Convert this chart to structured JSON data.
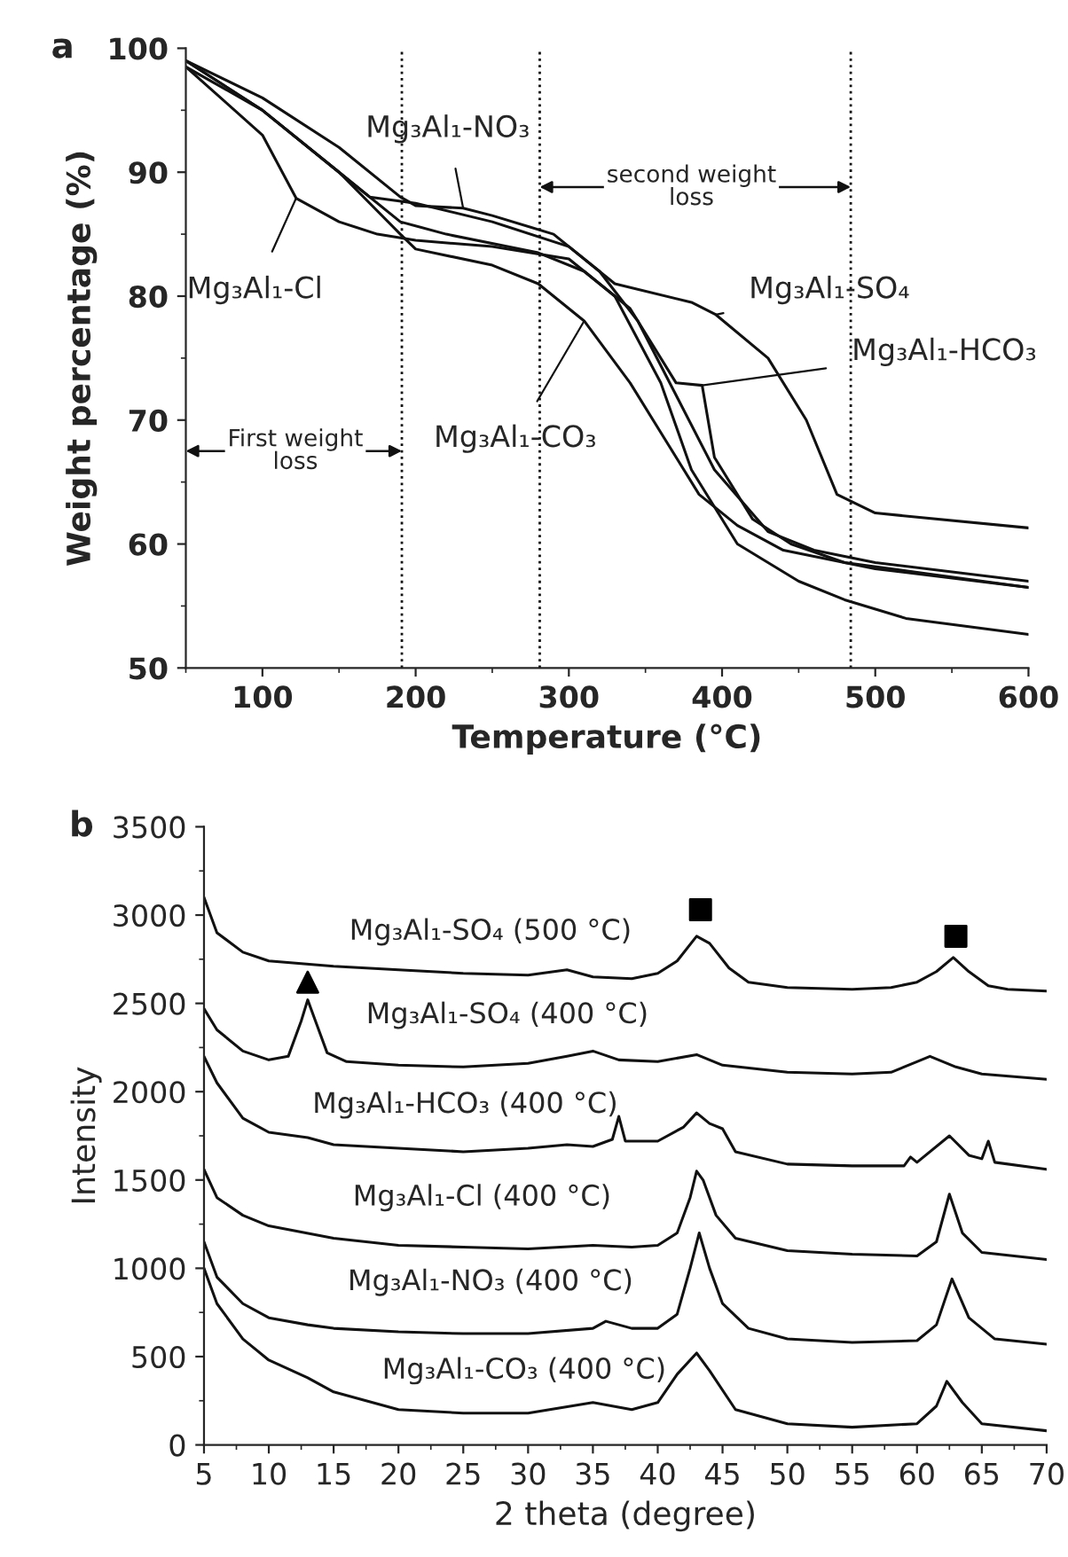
{
  "chart_data": [
    {
      "type": "line",
      "title": "a",
      "xlabel": "Temperature (°C)",
      "ylabel": "Weight percentage (%)",
      "xlim": [
        50,
        600
      ],
      "ylim": [
        50,
        100
      ],
      "xticks": [
        100,
        200,
        300,
        400,
        500,
        600
      ],
      "yticks": [
        50,
        60,
        70,
        80,
        90,
        100
      ],
      "grid": false,
      "legend": false,
      "series": [
        {
          "color": "#111111",
          "x": [
            50,
            100,
            150,
            190,
            200,
            250,
            280,
            310,
            340,
            365,
            385,
            410,
            440,
            500,
            600
          ],
          "values": [
            98.5,
            95,
            90,
            85,
            83.8,
            82.5,
            81,
            78,
            73,
            68,
            64,
            61.5,
            59.5,
            58,
            56.5
          ]
        },
        {
          "color": "#111111",
          "x": [
            50,
            100,
            122,
            150,
            175,
            200,
            250,
            300,
            330,
            360,
            380,
            410,
            450,
            480,
            520,
            600
          ],
          "values": [
            98.5,
            93,
            87.9,
            86,
            85,
            84.5,
            84,
            83,
            80,
            73,
            66,
            60,
            57,
            55.5,
            54,
            52.7
          ]
        },
        {
          "color": "#111111",
          "x": [
            50,
            100,
            150,
            190,
            200,
            231,
            250,
            290,
            320,
            345,
            370,
            395,
            430,
            460,
            500,
            600
          ],
          "values": [
            99,
            96,
            92,
            88,
            87.3,
            87.1,
            86.5,
            85,
            82,
            78,
            72,
            66,
            61,
            59.5,
            58.5,
            57
          ]
        },
        {
          "color": "#111111",
          "x": [
            50,
            100,
            150,
            190,
            220,
            280,
            310,
            340,
            370,
            387,
            395,
            420,
            445,
            480,
            540,
            600
          ],
          "values": [
            99,
            95,
            90,
            86,
            85,
            83.5,
            82,
            79,
            73,
            72.8,
            67,
            62,
            60,
            58.5,
            57.5,
            56.5
          ]
        },
        {
          "color": "#111111",
          "x": [
            50,
            100,
            150,
            170,
            200,
            250,
            300,
            330,
            380,
            396,
            430,
            455,
            475,
            500,
            600
          ],
          "values": [
            99,
            95,
            90,
            88,
            87.5,
            86,
            84,
            81,
            79.5,
            78.5,
            75,
            70,
            64,
            62.5,
            61.3
          ]
        }
      ],
      "ref_lines": [
        {
          "axis": "x",
          "value": 191,
          "line_style": "dotted",
          "color": "#111111"
        },
        {
          "axis": "x",
          "value": 281,
          "line_style": "dotted",
          "color": "#111111"
        },
        {
          "axis": "x",
          "value": 484,
          "line_style": "dotted",
          "color": "#111111"
        }
      ],
      "annotations": [
        {
          "text": "Mg₃Al₁-NO₃",
          "x": 231,
          "y": 87.1
        },
        {
          "text": "Mg₃Al₁-Cl",
          "x": 122,
          "y": 87.9
        },
        {
          "text": "Mg₃Al₁-SO₄",
          "x": 396,
          "y": 78.5
        },
        {
          "text": "Mg₃Al₁-HCO₃",
          "x": 387,
          "y": 72.8
        },
        {
          "text": "Mg₃Al₁-CO₃",
          "x": 310,
          "y": 78
        },
        "First weight\nloss",
        "second weight\nloss"
      ]
    },
    {
      "type": "line",
      "title": "b",
      "xlabel": "2 theta (degree)",
      "ylabel": "Intensity",
      "xlim": [
        5,
        70
      ],
      "ylim": [
        0,
        3500
      ],
      "xticks": [
        5,
        10,
        15,
        20,
        25,
        30,
        35,
        40,
        45,
        50,
        55,
        60,
        65,
        70
      ],
      "yticks": [
        0,
        500,
        1000,
        1500,
        2000,
        2500,
        3000,
        3500
      ],
      "grid": false,
      "legend": false,
      "series": [
        {
          "color": "#111111",
          "x": [
            5,
            6,
            8,
            10,
            15,
            20,
            25,
            30,
            33,
            35,
            38,
            40,
            41.5,
            43,
            44,
            45.5,
            47,
            50,
            55,
            58,
            60,
            61.5,
            62.8,
            64,
            65.5,
            67,
            70
          ],
          "values": [
            3100,
            2900,
            2790,
            2740,
            2710,
            2690,
            2670,
            2660,
            2690,
            2650,
            2640,
            2670,
            2740,
            2880,
            2840,
            2700,
            2620,
            2590,
            2580,
            2590,
            2620,
            2680,
            2760,
            2680,
            2600,
            2580,
            2570
          ]
        },
        {
          "color": "#111111",
          "x": [
            5,
            6,
            8,
            10,
            11.5,
            12.5,
            13,
            13.7,
            14.5,
            16,
            20,
            25,
            30,
            33,
            35,
            37,
            40,
            43,
            45,
            50,
            55,
            58,
            60,
            61,
            63,
            65,
            70
          ],
          "values": [
            2470,
            2350,
            2230,
            2180,
            2200,
            2400,
            2520,
            2380,
            2220,
            2170,
            2150,
            2140,
            2160,
            2200,
            2230,
            2180,
            2170,
            2210,
            2150,
            2110,
            2100,
            2110,
            2170,
            2200,
            2140,
            2100,
            2070
          ]
        },
        {
          "color": "#111111",
          "x": [
            5,
            6,
            8,
            10,
            13,
            15,
            20,
            25,
            30,
            33,
            35,
            36.5,
            37,
            37.5,
            40,
            42,
            43,
            44,
            45,
            46,
            50,
            55,
            59,
            59.5,
            60,
            62.5,
            64,
            65,
            65.5,
            66,
            70
          ],
          "values": [
            2200,
            2050,
            1850,
            1770,
            1740,
            1700,
            1680,
            1660,
            1680,
            1700,
            1690,
            1730,
            1860,
            1720,
            1720,
            1800,
            1880,
            1820,
            1790,
            1660,
            1590,
            1580,
            1580,
            1630,
            1600,
            1750,
            1640,
            1620,
            1720,
            1600,
            1560
          ]
        },
        {
          "color": "#111111",
          "x": [
            5,
            6,
            8,
            10,
            15,
            20,
            25,
            30,
            35,
            38,
            40,
            41.5,
            42.5,
            43,
            43.5,
            44.5,
            46,
            50,
            55,
            60,
            61.5,
            62.5,
            63.5,
            65,
            70
          ],
          "values": [
            1560,
            1400,
            1300,
            1240,
            1170,
            1130,
            1120,
            1110,
            1130,
            1120,
            1130,
            1200,
            1400,
            1550,
            1500,
            1300,
            1170,
            1100,
            1080,
            1070,
            1150,
            1420,
            1200,
            1090,
            1050
          ]
        },
        {
          "color": "#111111",
          "x": [
            5,
            6,
            8,
            10,
            13,
            15,
            20,
            25,
            30,
            35,
            36,
            38,
            40,
            41.5,
            42.5,
            43.2,
            44,
            45,
            47,
            50,
            55,
            60,
            61.5,
            62.7,
            64,
            66,
            70
          ],
          "values": [
            1150,
            950,
            800,
            720,
            680,
            660,
            640,
            630,
            630,
            660,
            700,
            660,
            660,
            740,
            1000,
            1200,
            1000,
            800,
            660,
            600,
            580,
            590,
            680,
            940,
            720,
            600,
            570
          ]
        },
        {
          "color": "#111111",
          "x": [
            5,
            6,
            8,
            10,
            13,
            15,
            20,
            25,
            30,
            35,
            38,
            40,
            41.5,
            43,
            44,
            46,
            50,
            55,
            60,
            61.5,
            62.3,
            63.5,
            65,
            70
          ],
          "values": [
            1000,
            800,
            600,
            480,
            380,
            300,
            200,
            180,
            180,
            240,
            200,
            240,
            400,
            520,
            420,
            200,
            120,
            100,
            120,
            220,
            360,
            240,
            120,
            80
          ]
        },
        {
          "type": "scatter",
          "marker": "square",
          "color": "#000000",
          "x": [
            43.3,
            63
          ],
          "values": [
            3030,
            2880
          ]
        },
        {
          "type": "scatter",
          "marker": "triangle",
          "color": "#000000",
          "x": [
            13
          ],
          "values": [
            2620
          ]
        }
      ],
      "annotations": [
        "Mg₃Al₁-SO₄ (500 °C)",
        "Mg₃Al₁-SO₄ (400 °C)",
        "Mg₃Al₁-HCO₃ (400 °C)",
        "Mg₃Al₁-Cl (400 °C)",
        "Mg₃Al₁-NO₃ (400 °C)",
        "Mg₃Al₁-CO₃ (400 °C)"
      ]
    }
  ]
}
